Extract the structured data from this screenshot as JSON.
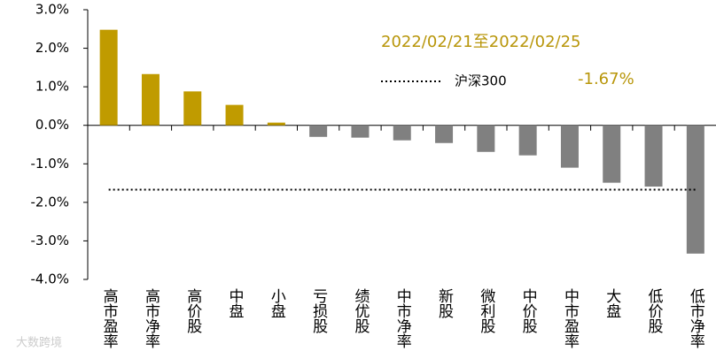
{
  "chart_data": {
    "type": "bar",
    "categories": [
      "高市盈率",
      "高市净率",
      "高价股",
      "中盘",
      "小盘",
      "亏损股",
      "绩优股",
      "中市净率",
      "新股",
      "微利股",
      "中价股",
      "中市盈率",
      "大盘",
      "低价股",
      "低市净率"
    ],
    "values": [
      2.48,
      1.33,
      0.88,
      0.53,
      0.07,
      -0.3,
      -0.32,
      -0.39,
      -0.46,
      -0.69,
      -0.78,
      -1.1,
      -1.49,
      -1.59,
      -3.33
    ],
    "positive_color": "#c09b00",
    "negative_color": "#808080",
    "ylim": [
      -4,
      3
    ],
    "yticks": [
      {
        "value": -4,
        "label": "-4.0%"
      },
      {
        "value": -3,
        "label": "-3.0%"
      },
      {
        "value": -2,
        "label": "-2.0%"
      },
      {
        "value": -1,
        "label": "-1.0%"
      },
      {
        "value": 0,
        "label": "0.0%"
      },
      {
        "value": 1,
        "label": "1.0%"
      },
      {
        "value": 2,
        "label": "2.0%"
      },
      {
        "value": 3,
        "label": "3.0%"
      }
    ],
    "annotation": "2022/02/21至2022/02/25",
    "reference": {
      "name": "沪深300",
      "value": -1.67,
      "value_label": "-1.67%"
    },
    "watermark": "大数跨境"
  }
}
